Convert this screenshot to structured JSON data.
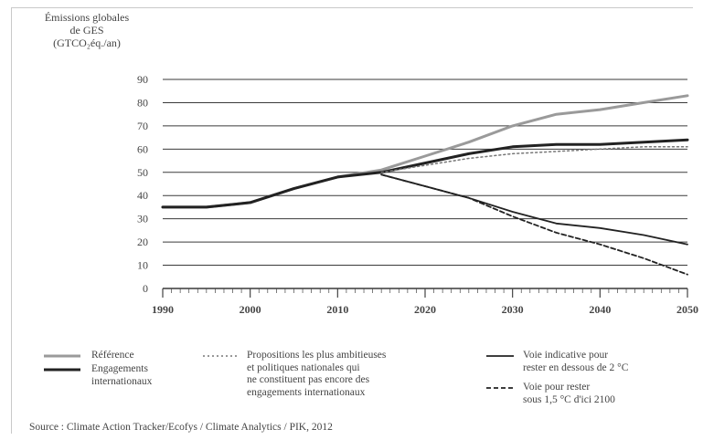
{
  "chart_data": {
    "type": "line",
    "ylabel": [
      "Émissions globales",
      "de GES",
      "(GTCO₂éq./an)"
    ],
    "ylim": [
      0,
      90
    ],
    "y_ticks": [
      0,
      10,
      20,
      30,
      40,
      50,
      60,
      70,
      80,
      90
    ],
    "xlim": [
      1990,
      2050
    ],
    "x_tick_labels": [
      1990,
      2000,
      2010,
      2020,
      2030,
      2040,
      2050
    ],
    "grid": "horizontal",
    "series": [
      {
        "name": "Référence",
        "color": "#9a9a9a",
        "dash": "solid",
        "x": [
          1990,
          1995,
          2000,
          2005,
          2010,
          2015,
          2020,
          2025,
          2030,
          2035,
          2040,
          2045,
          2050
        ],
        "y": [
          35,
          35,
          37,
          43,
          48,
          51,
          57,
          63,
          70,
          75,
          77,
          80,
          83
        ]
      },
      {
        "name": "Engagements internationaux",
        "color": "#222222",
        "dash": "solid",
        "x": [
          1990,
          1995,
          2000,
          2005,
          2010,
          2015,
          2020,
          2025,
          2030,
          2035,
          2040,
          2045,
          2050
        ],
        "y": [
          35,
          35,
          37,
          43,
          48,
          50,
          54,
          58,
          61,
          62,
          62,
          63,
          64
        ]
      },
      {
        "name": "Propositions les plus ambitieuses et politiques nationales qui ne constituent pas encore des engagements internationaux",
        "color": "#777777",
        "dash": "dotted",
        "x": [
          2015,
          2020,
          2025,
          2030,
          2035,
          2040,
          2045,
          2050
        ],
        "y": [
          50,
          53,
          56,
          58,
          59,
          60,
          61,
          61
        ]
      },
      {
        "name": "Voie indicative pour rester en dessous de 2 °C",
        "color": "#222222",
        "dash": "solid",
        "x": [
          2015,
          2020,
          2025,
          2030,
          2035,
          2040,
          2045,
          2050
        ],
        "y": [
          49,
          44,
          39,
          33,
          28,
          26,
          23,
          19
        ]
      },
      {
        "name": "Voie pour rester sous 1,5 °C d'ici 2100",
        "color": "#222222",
        "dash": "dashed",
        "x": [
          2015,
          2020,
          2025,
          2030,
          2035,
          2040,
          2045,
          2050
        ],
        "y": [
          49,
          44,
          39,
          31,
          24,
          19,
          13,
          6
        ]
      }
    ]
  },
  "legend": {
    "reference": "Référence",
    "engagements": [
      "Engagements",
      "internationaux"
    ],
    "propositions": [
      "Propositions les plus ambitieuses",
      "et politiques nationales qui",
      "ne constituent pas encore des",
      "engagements internationaux"
    ],
    "voie2": [
      "Voie indicative pour",
      "rester en dessous de 2 °C"
    ],
    "voie15": [
      "Voie pour rester",
      "sous 1,5 °C d'ici 2100"
    ]
  },
  "source": "Source : Climate Action Tracker/Ecofys / Climate Analytics / PIK, 2012"
}
